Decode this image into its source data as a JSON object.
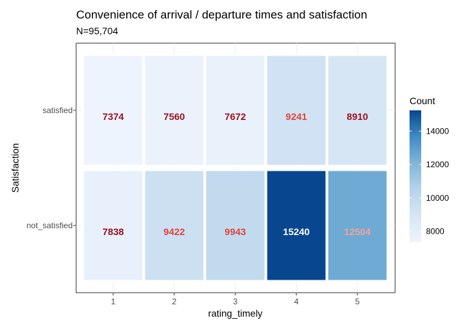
{
  "chart_data": {
    "type": "heatmap",
    "title": "Convenience of arrival / departure times and satisfaction",
    "subtitle": "N=95,704",
    "xlabel": "rating_timely",
    "ylabel": "Satisfaction",
    "x_categories": [
      "1",
      "2",
      "3",
      "4",
      "5"
    ],
    "y_categories": [
      "satisfied",
      "not_satisfied"
    ],
    "values": [
      [
        7374,
        7560,
        7672,
        9241,
        8910
      ],
      [
        7838,
        9422,
        9943,
        15240,
        12504
      ]
    ],
    "legend": {
      "title": "Count",
      "ticks": [
        8000,
        10000,
        12000,
        14000
      ],
      "min": 7374,
      "max": 15240,
      "placement": "right"
    },
    "colors": {
      "low": "#eef4fd",
      "high": "#08468f",
      "label_low": "#9b0f1e",
      "label_mid": "#e0433c",
      "label_high": "#ffffff",
      "label_alt": "#f4a39a"
    },
    "grid": true
  }
}
